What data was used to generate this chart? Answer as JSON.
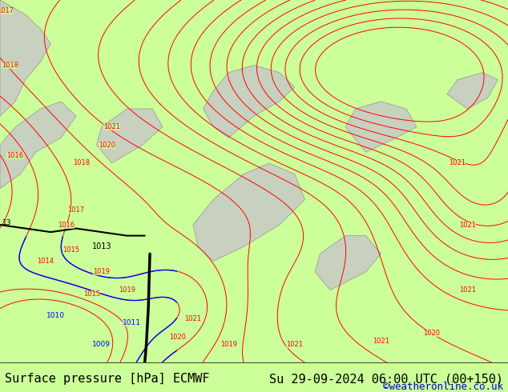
{
  "title_left": "Surface pressure [hPa] ECMWF",
  "title_right": "Su 29-09-2024 06:00 UTC (00+150)",
  "watermark": "©weatheronline.co.uk",
  "bg_color": "#ccff99",
  "contour_color_red": "#ff0000",
  "contour_color_blue": "#0000ff",
  "contour_color_black": "#000000",
  "gray_color": "#c8c8c8",
  "gray_outline": "#888888",
  "bottom_bar_color": "#ffffff",
  "bottom_text_color": "#000000",
  "watermark_color": "#0000cc",
  "title_fontsize": 11,
  "watermark_fontsize": 9,
  "figsize": [
    6.34,
    4.9
  ],
  "dpi": 100
}
